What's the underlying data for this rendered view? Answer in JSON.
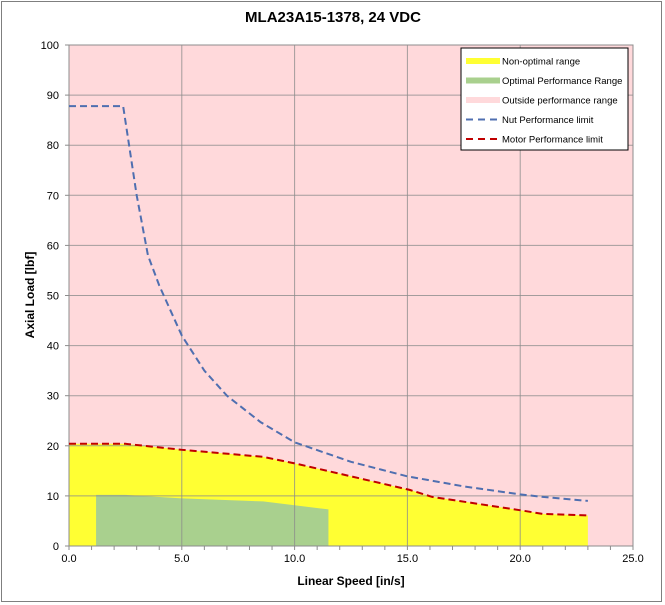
{
  "chart_data": {
    "type": "area",
    "title": "MLA23A15-1378, 24 VDC",
    "xlabel": "Linear Speed [in/s]",
    "ylabel": "Axial Load [lbf]",
    "xlim": [
      0,
      25
    ],
    "ylim": [
      0,
      100
    ],
    "xticks": [
      "0.0",
      "5.0",
      "10.0",
      "15.0",
      "20.0",
      "25.0"
    ],
    "yticks": [
      "0",
      "10",
      "20",
      "30",
      "40",
      "50",
      "60",
      "70",
      "80",
      "90",
      "100"
    ],
    "grid": true,
    "legend_position": "top-right",
    "background_series": {
      "name": "Outside performance range",
      "color": "#ffd9db"
    },
    "series": [
      {
        "name": "Non-optimal range",
        "kind": "area",
        "color": "#ffff33",
        "x": [
          0,
          2.5,
          5.0,
          8.6,
          10.1,
          15.1,
          16.1,
          20.2,
          21.0,
          23.0
        ],
        "y": [
          20.4,
          20.4,
          19.2,
          17.8,
          16.4,
          11.2,
          9.8,
          7.0,
          6.4,
          6.1
        ]
      },
      {
        "name": "Optimal Performance Range",
        "kind": "area",
        "color": "#a9d08e",
        "x": [
          1.2,
          2.5,
          5.0,
          8.6,
          11.5
        ],
        "y": [
          10.2,
          10.2,
          9.5,
          8.9,
          7.3
        ]
      },
      {
        "name": "Nut Performance limit",
        "kind": "dashed-line",
        "color": "#4f6fb0",
        "x": [
          0,
          2.4,
          3.0,
          3.5,
          4.0,
          5.0,
          6.0,
          7.0,
          8.5,
          10.0,
          12.5,
          15.0,
          17.5,
          20.0,
          21.0,
          23.0
        ],
        "y": [
          87.8,
          87.8,
          70,
          58,
          52,
          42,
          35,
          30,
          24.7,
          20.7,
          16.8,
          13.9,
          11.9,
          10.3,
          9.8,
          9.0
        ]
      },
      {
        "name": "Motor Performance limit",
        "kind": "dashed-line",
        "color": "#c00000",
        "x": [
          0,
          2.5,
          5.0,
          8.6,
          10.1,
          15.1,
          16.1,
          20.2,
          21.0,
          23.0
        ],
        "y": [
          20.4,
          20.4,
          19.2,
          17.8,
          16.4,
          11.2,
          9.8,
          7.0,
          6.4,
          6.1
        ]
      }
    ]
  }
}
